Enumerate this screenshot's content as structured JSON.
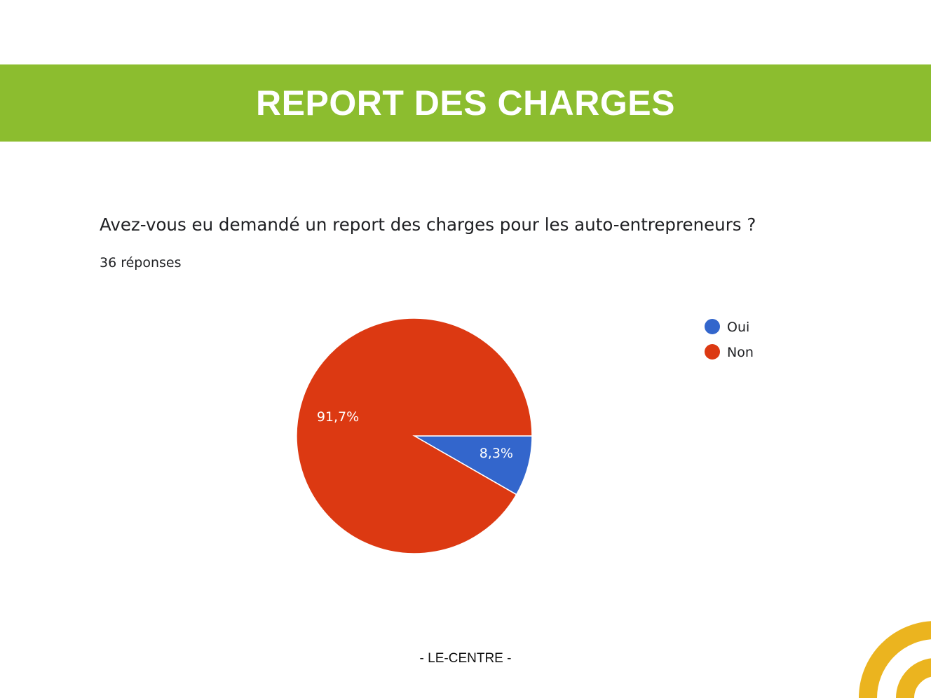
{
  "header": {
    "title": "REPORT DES CHARGES",
    "background_color": "#8cbd2f"
  },
  "question": {
    "text": "Avez-vous eu demandé un report des charges pour les auto-entrepreneurs ?",
    "responses": "36 réponses"
  },
  "chart_data": {
    "type": "pie",
    "title": "",
    "categories": [
      "Oui",
      "Non"
    ],
    "values": [
      8.3,
      91.7
    ],
    "labels": [
      "8,3%",
      "91,7%"
    ],
    "colors": [
      "#3366cc",
      "#dc3912"
    ],
    "legend_placement": "right"
  },
  "footer": {
    "text": "- LE-CENTRE -"
  },
  "logo": {
    "name": "yellow-arc-logo",
    "color": "#ebb41f"
  }
}
